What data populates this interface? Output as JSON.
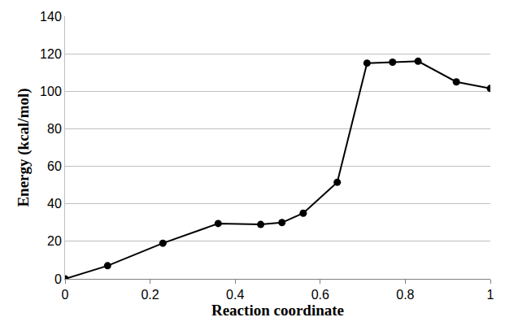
{
  "chart_data": {
    "type": "line",
    "x_label": "Reaction coordinate",
    "y_label": "Energy (kcal/mol)",
    "x": [
      0,
      0.1,
      0.23,
      0.36,
      0.46,
      0.51,
      0.56,
      0.64,
      0.71,
      0.77,
      0.83,
      0.92,
      1.0
    ],
    "values": [
      0,
      7,
      19,
      29.5,
      29,
      30,
      35,
      51.5,
      115,
      115.5,
      116,
      105,
      101.5
    ],
    "color": "#000000",
    "marker": "circle",
    "line_style": "solid",
    "xlim": [
      0,
      1
    ],
    "ylim": [
      0,
      140
    ],
    "xticks": [
      0,
      0.2,
      0.4,
      0.6,
      0.8,
      1
    ],
    "yticks": [
      0,
      20,
      40,
      60,
      80,
      100,
      120,
      140
    ],
    "grid": true
  }
}
